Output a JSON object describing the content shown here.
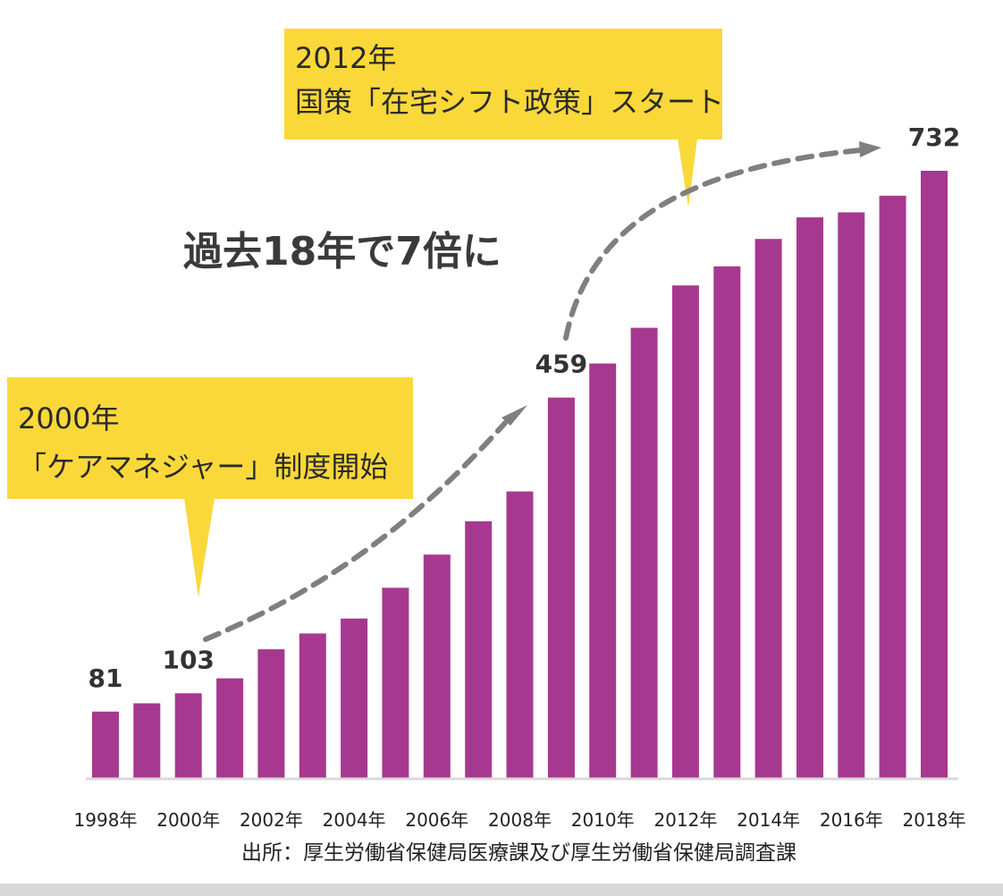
{
  "chart_data": {
    "type": "bar",
    "categories": [
      "1998年",
      "1999年",
      "2000年",
      "2001年",
      "2002年",
      "2003年",
      "2004年",
      "2005年",
      "2006年",
      "2007年",
      "2008年",
      "2009年",
      "2010年",
      "2011年",
      "2012年",
      "2013年",
      "2014年",
      "2015年",
      "2016年",
      "2017年",
      "2018年"
    ],
    "x_tick_labels": [
      "1998年",
      "2000年",
      "2002年",
      "2004年",
      "2006年",
      "2008年",
      "2010年",
      "2012年",
      "2014年",
      "2016年",
      "2018年"
    ],
    "values": [
      81,
      91,
      103,
      121,
      156,
      175,
      193,
      230,
      270,
      310,
      346,
      459,
      500,
      543,
      594,
      617,
      650,
      676,
      682,
      702,
      732
    ],
    "data_labels": [
      {
        "category": "1998年",
        "text": "81"
      },
      {
        "category": "2000年",
        "text": "103"
      },
      {
        "category": "2009年",
        "text": "459"
      },
      {
        "category": "2018年",
        "text": "732"
      }
    ],
    "ylim": [
      0,
      830
    ],
    "grid": false,
    "bar_color": "#a6398f",
    "arrow_color": "#7f7f7f",
    "title": "",
    "xlabel": "",
    "ylabel": ""
  },
  "headline": "過去18年で7倍に",
  "callouts": {
    "c2012": {
      "line1": "2012年",
      "line2": "国策「在宅シフト政策」スタート"
    },
    "c2000": {
      "line1": "2000年",
      "line2": "「ケアマネジャー」制度開始"
    }
  },
  "source": "出所：厚生労働省保健局医療課及び厚生労働省保健局調査課",
  "colors": {
    "callout": "#fbd83a"
  }
}
